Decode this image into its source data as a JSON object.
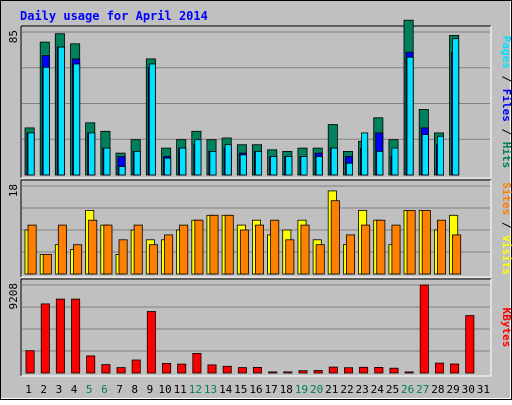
{
  "chart_data": {
    "type": "bar",
    "title": "Daily usage for April 2014",
    "colors": {
      "background": "#c0c0c0",
      "title": "#0000ff",
      "hits": "#00805c",
      "files": "#0000ff",
      "pages": "#00e0ff",
      "visits": "#ffff00",
      "sites": "#ff8000",
      "kbytes": "#ff0000",
      "day_normal": "#000000",
      "day_weekend": "#00805c"
    },
    "days": [
      "1",
      "2",
      "3",
      "4",
      "5",
      "6",
      "7",
      "8",
      "9",
      "10",
      "11",
      "12",
      "13",
      "14",
      "15",
      "16",
      "17",
      "18",
      "19",
      "20",
      "21",
      "22",
      "23",
      "24",
      "25",
      "26",
      "27",
      "28",
      "29",
      "30",
      "31"
    ],
    "weekend_days": [
      "5",
      "6",
      "12",
      "13",
      "19",
      "20",
      "26",
      "27"
    ],
    "panels": [
      {
        "id": "hits-files-pages",
        "ymax_label": "85",
        "ymax": 85,
        "axis_title": [
          {
            "text": "Pages",
            "color": "#00e0ff"
          },
          {
            "text": " / ",
            "color": "#000000"
          },
          {
            "text": "Files",
            "color": "#0000ff"
          },
          {
            "text": " / ",
            "color": "#000000"
          },
          {
            "text": "Hits",
            "color": "#00805c"
          }
        ],
        "series": [
          {
            "name": "Hits",
            "color": "#00805c",
            "values": [
              28,
              79,
              84,
              78,
              31,
              26,
              13,
              21,
              69,
              16,
              21,
              26,
              21,
              22,
              18,
              18,
              15,
              14,
              16,
              16,
              30,
              14,
              20,
              34,
              21,
              92,
              39,
              25,
              83,
              0,
              0
            ]
          },
          {
            "name": "Files",
            "color": "#0000ff",
            "values": [
              25,
              71,
              76,
              69,
              25,
              16,
              11,
              14,
              64,
              11,
              16,
              18,
              14,
              16,
              13,
              14,
              11,
              11,
              11,
              13,
              16,
              11,
              16,
              25,
              11,
              73,
              28,
              18,
              73,
              0,
              0
            ]
          },
          {
            "name": "Pages",
            "color": "#00e0ff",
            "values": [
              25,
              64,
              76,
              66,
              25,
              16,
              5,
              14,
              66,
              10,
              16,
              21,
              14,
              18,
              12,
              14,
              11,
              11,
              11,
              11,
              16,
              7,
              25,
              14,
              16,
              70,
              24,
              23,
              81,
              0,
              0
            ]
          }
        ]
      },
      {
        "id": "visits-sites",
        "ymax_label": "18",
        "ymax": 18,
        "axis_title": [
          {
            "text": "Sites",
            "color": "#ff8000"
          },
          {
            "text": " / ",
            "color": "#000000"
          },
          {
            "text": "Visits",
            "color": "#ffff00"
          }
        ],
        "series": [
          {
            "name": "Visits",
            "color": "#ffff00",
            "values": [
              9,
              4,
              6,
              5,
              13,
              10,
              4,
              9,
              7,
              7,
              9,
              11,
              12,
              12,
              10,
              11,
              8,
              9,
              11,
              7,
              17,
              6,
              13,
              11,
              6,
              13,
              13,
              9,
              12,
              0,
              0
            ]
          },
          {
            "name": "Sites",
            "color": "#ff8000",
            "values": [
              10,
              4,
              10,
              6,
              11,
              10,
              7,
              10,
              6,
              8,
              10,
              11,
              12,
              12,
              9,
              10,
              11,
              7,
              10,
              6,
              15,
              8,
              10,
              11,
              10,
              13,
              13,
              11,
              8,
              0,
              0
            ]
          }
        ]
      },
      {
        "id": "kbytes",
        "ymax_label": "9208",
        "ymax": 9208,
        "axis_title": [
          {
            "text": "KBytes",
            "color": "#ff0000"
          }
        ],
        "series": [
          {
            "name": "KBytes",
            "color": "#ff0000",
            "values": [
              2330,
              7230,
              7730,
              7730,
              1790,
              880,
              570,
              1360,
              6430,
              1000,
              930,
              2050,
              850,
              700,
              560,
              590,
              120,
              120,
              240,
              260,
              620,
              550,
              600,
              590,
              500,
              120,
              9208,
              1040,
              940,
              6010,
              0
            ]
          }
        ]
      }
    ]
  }
}
